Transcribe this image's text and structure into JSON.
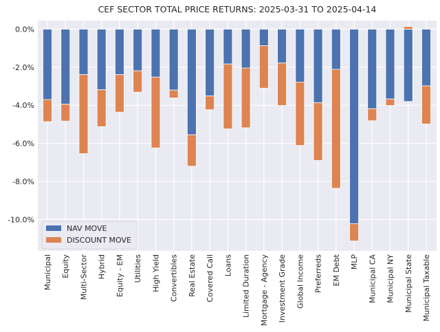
{
  "chart_data": {
    "type": "bar",
    "stacked": true,
    "title": "CEF SECTOR TOTAL PRICE RETURNS: 2025-03-31 TO 2025-04-14",
    "xlabel": "",
    "ylabel": "",
    "ylim": [
      -11.65,
      0.45
    ],
    "yticks": [
      0,
      -2,
      -4,
      -6,
      -8,
      -10
    ],
    "ytick_labels": [
      "0.0%",
      "-2.0%",
      "-4.0%",
      "-6.0%",
      "-8.0%",
      "-10.0%"
    ],
    "grid": true,
    "legend_position": "lower-left",
    "categories": [
      "Municipal",
      "Equity",
      "Multi-Sector",
      "Hybrid",
      "Equity - EM",
      "Utilities",
      "High Yield",
      "Convertibles",
      "Real Estate",
      "Covered Call",
      "Loans",
      "Limited Duration",
      "Mortgage - Agency",
      "Investment Grade",
      "Global Income",
      "Preferreds",
      "EM Debt",
      "MLP",
      "Municipal CA",
      "Municipal NY",
      "Municipal State",
      "Municipal Taxable"
    ],
    "series": [
      {
        "name": "NAV MOVE",
        "color": "#4c72b0",
        "values": [
          -3.7,
          -3.94,
          -2.39,
          -3.18,
          -2.39,
          -2.19,
          -2.52,
          -3.2,
          -5.55,
          -3.51,
          -1.83,
          -2.04,
          -0.87,
          -1.78,
          -2.78,
          -3.86,
          -2.11,
          -10.22,
          -4.18,
          -3.67,
          -3.8,
          -2.98
        ]
      },
      {
        "name": "DISCOUNT MOVE",
        "color": "#dd8452",
        "values": [
          -1.16,
          -0.89,
          -4.15,
          -1.94,
          -1.97,
          -1.12,
          -3.72,
          -0.41,
          -1.65,
          -0.72,
          -3.41,
          -3.14,
          -2.23,
          -2.23,
          -3.33,
          -3.04,
          -6.25,
          -0.91,
          -0.63,
          -0.34,
          0.14,
          -2.0
        ]
      }
    ]
  }
}
